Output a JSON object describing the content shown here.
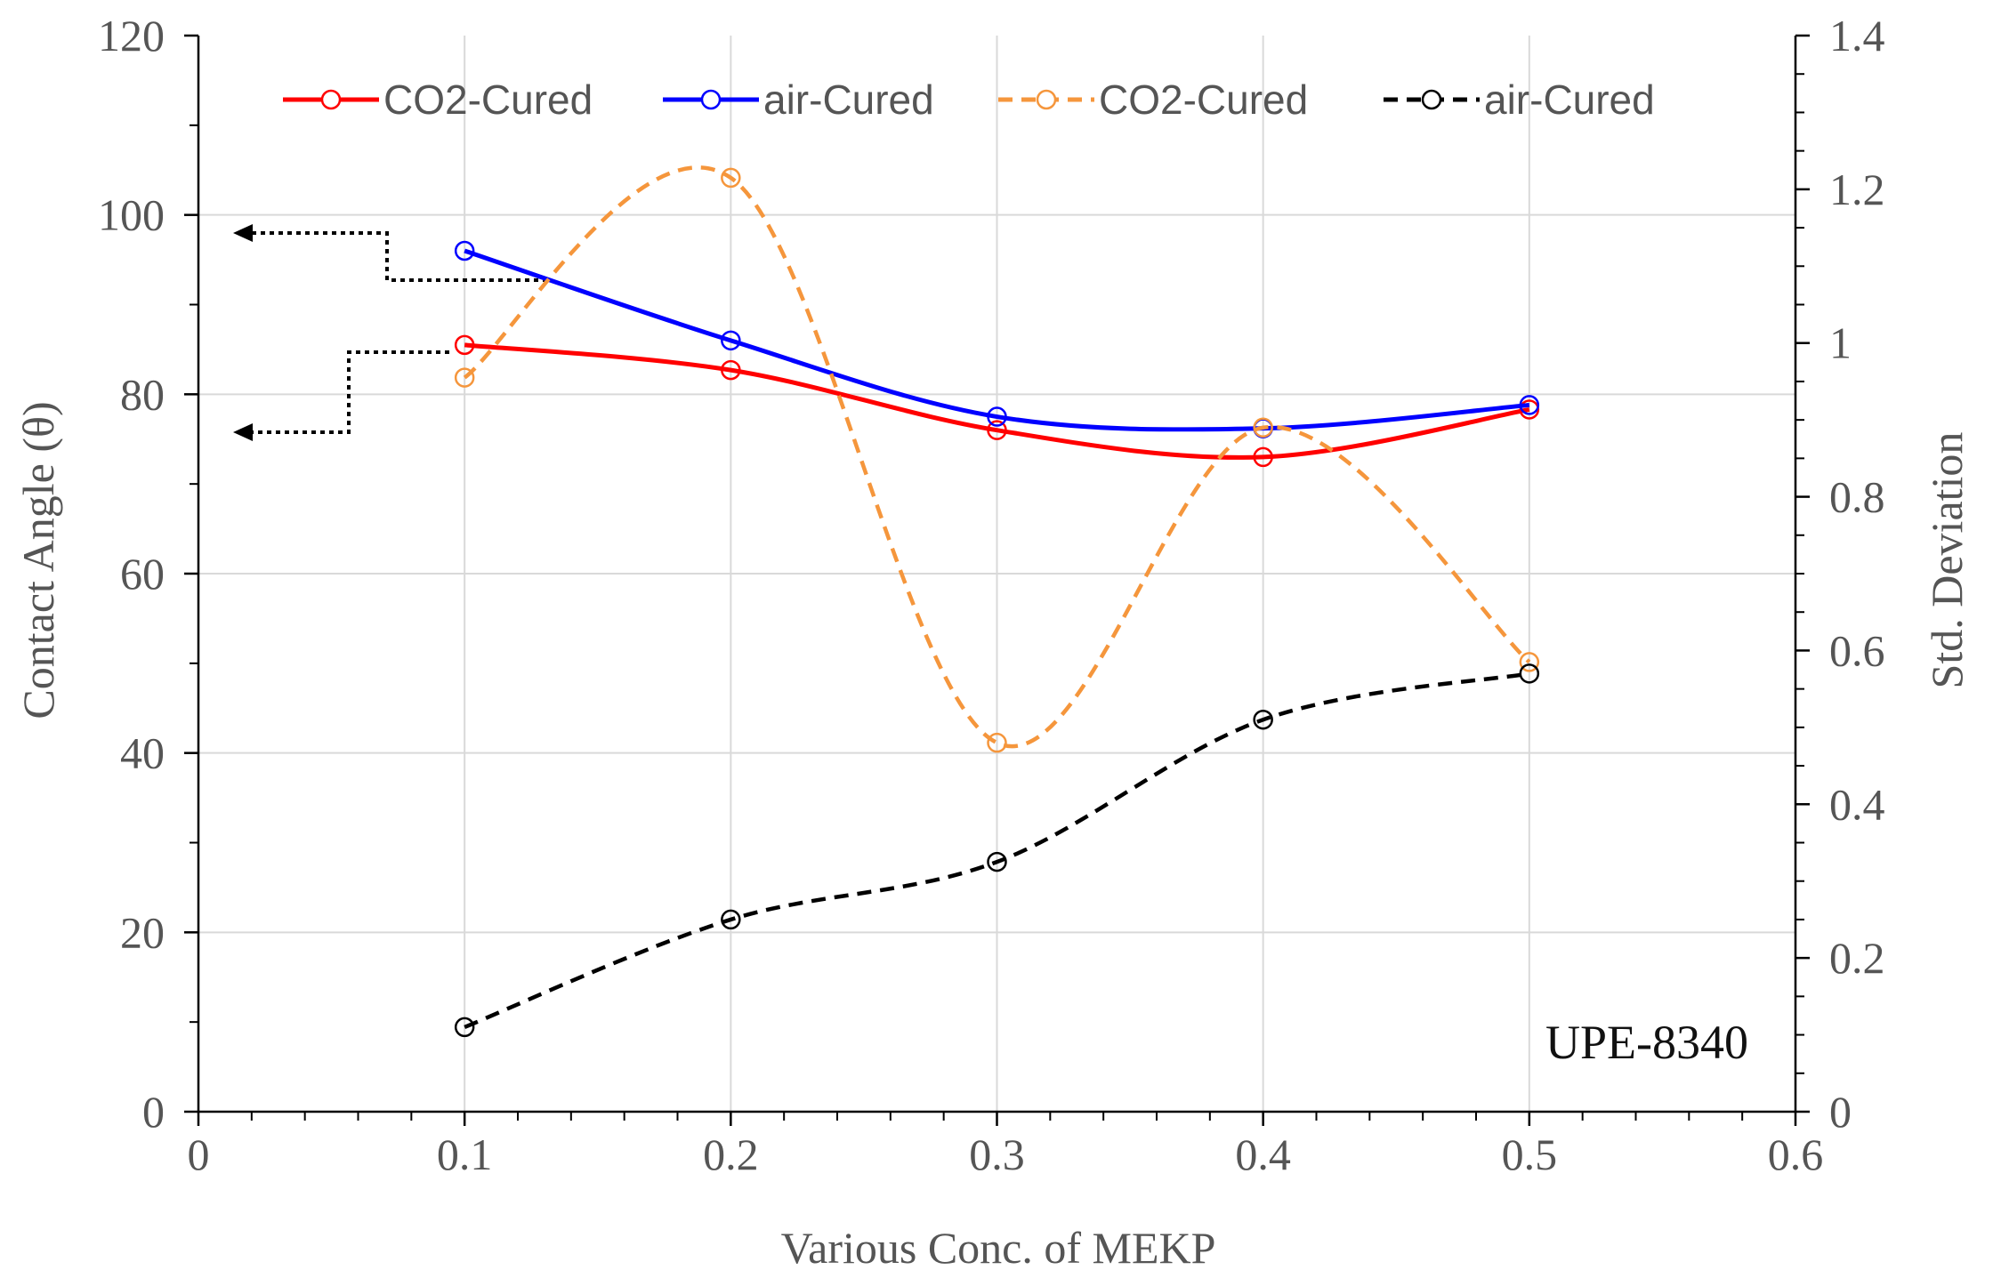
{
  "chart_data": {
    "type": "line",
    "annotation": "UPE-8340",
    "xlabel": "Various Conc. of MEKP",
    "ylabel_left": "Contact Angle (θ)",
    "ylabel_right": "Std. Deviation",
    "xlim": [
      0,
      0.6
    ],
    "ylim_left": [
      0,
      120
    ],
    "ylim_right": [
      0,
      1.4
    ],
    "x_ticks": [
      "0",
      "0.1",
      "0.2",
      "0.3",
      "0.4",
      "0.5",
      "0.6"
    ],
    "y_left_ticks": [
      "0",
      "20",
      "40",
      "60",
      "80",
      "100",
      "120"
    ],
    "y_right_ticks": [
      "0",
      "0.2",
      "0.4",
      "0.6",
      "0.8",
      "1",
      "1.2",
      "1.4"
    ],
    "grid": true,
    "legend_position": "top",
    "x": [
      0.1,
      0.2,
      0.3,
      0.4,
      0.5
    ],
    "series": [
      {
        "name": "CO2-Cured",
        "axis": "left",
        "style": "solid",
        "color": "#ff0000",
        "values": [
          85.5,
          82.7,
          76.0,
          73.0,
          78.3
        ]
      },
      {
        "name": "air-Cured",
        "axis": "left",
        "style": "solid",
        "color": "#0000ff",
        "values": [
          96.0,
          86.0,
          77.5,
          76.2,
          78.8
        ]
      },
      {
        "name": "CO2-Cured",
        "axis": "right",
        "style": "dashed",
        "color": "#f5963c",
        "values": [
          0.955,
          1.215,
          0.48,
          0.89,
          0.585
        ]
      },
      {
        "name": "air-Cured",
        "axis": "right",
        "style": "dashed",
        "color": "#000000",
        "values": [
          0.11,
          0.25,
          0.325,
          0.51,
          0.57
        ]
      }
    ]
  }
}
